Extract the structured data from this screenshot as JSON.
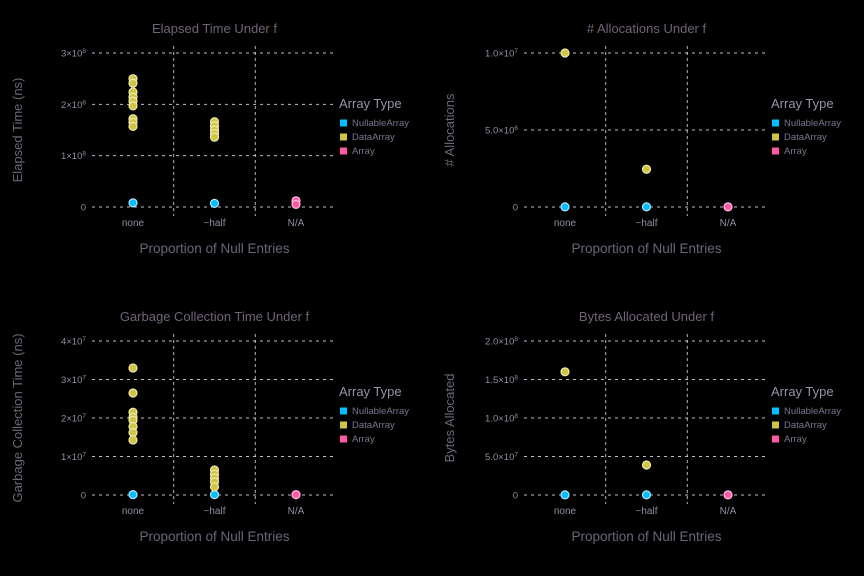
{
  "app": {
    "background_color": "#000000"
  },
  "colors": {
    "title": "#6e6478",
    "axis_label": "#6e6478",
    "tick_label": "#948ca0",
    "legend_title": "#9a90a8",
    "legend_label": "#7e7590",
    "gridline": "#d2d0e4"
  },
  "legend": {
    "title": "Array Type",
    "items": [
      {
        "label": "NullableArray",
        "color": "#00BFFF",
        "stroke": "#b0e5ff"
      },
      {
        "label": "DataArray",
        "color": "#D0C643",
        "stroke": "#efe9b0"
      },
      {
        "label": "Array",
        "color": "#FF59A6",
        "stroke": "#ffc0dc"
      }
    ]
  },
  "chart_data": [
    {
      "id": "elapsed-time",
      "type": "scatter",
      "title": "Elapsed Time Under f",
      "xlabel": "Proportion of Null Entries",
      "ylabel": "Elapsed Time (ns)",
      "categories": [
        "none",
        "~half",
        "N/A"
      ],
      "ylim": [
        0,
        300000000
      ],
      "grid": true,
      "legend_position": "right",
      "y_ticks": [
        {
          "value": 0,
          "mantissa": "0",
          "exp": ""
        },
        {
          "value": 100000000,
          "mantissa": "1×10",
          "exp": "8"
        },
        {
          "value": 200000000,
          "mantissa": "2×10",
          "exp": "8"
        },
        {
          "value": 300000000,
          "mantissa": "3×10",
          "exp": "8"
        }
      ],
      "series": [
        {
          "name": "NullableArray",
          "points": [
            [
              8000000
            ],
            [
              7000000
            ],
            []
          ]
        },
        {
          "name": "DataArray",
          "points": [
            [
              250000000,
              241000000,
              224000000,
              214000000,
              206000000,
              197000000,
              172000000,
              165000000,
              157000000
            ],
            [
              166000000,
              158000000,
              150000000,
              143000000,
              136000000
            ],
            []
          ]
        },
        {
          "name": "Array",
          "points": [
            [],
            [],
            [
              12000000,
              5000000
            ]
          ]
        }
      ]
    },
    {
      "id": "allocations",
      "type": "scatter",
      "title": "# Allocations Under f",
      "xlabel": "Proportion of Null Entries",
      "ylabel": "# Allocations",
      "categories": [
        "none",
        "~half",
        "N/A"
      ],
      "ylim": [
        0,
        10000000
      ],
      "grid": true,
      "legend_position": "right",
      "y_ticks": [
        {
          "value": 0,
          "mantissa": "0",
          "exp": ""
        },
        {
          "value": 5000000,
          "mantissa": "5.0×10",
          "exp": "6"
        },
        {
          "value": 10000000,
          "mantissa": "1.0×10",
          "exp": "7"
        }
      ],
      "series": [
        {
          "name": "NullableArray",
          "points": [
            [
              10000
            ],
            [
              10000
            ],
            []
          ]
        },
        {
          "name": "DataArray",
          "points": [
            [
              10000000
            ],
            [
              2450000
            ],
            []
          ]
        },
        {
          "name": "Array",
          "points": [
            [],
            [],
            [
              10000
            ]
          ]
        }
      ]
    },
    {
      "id": "gc-time",
      "type": "scatter",
      "title": "Garbage Collection Time Under f",
      "xlabel": "Proportion of Null Entries",
      "ylabel": "Garbage Collection Time (ns)",
      "categories": [
        "none",
        "~half",
        "N/A"
      ],
      "ylim": [
        0,
        40000000
      ],
      "grid": true,
      "legend_position": "right",
      "y_ticks": [
        {
          "value": 0,
          "mantissa": "0",
          "exp": ""
        },
        {
          "value": 10000000,
          "mantissa": "1×10",
          "exp": "7"
        },
        {
          "value": 20000000,
          "mantissa": "2×10",
          "exp": "7"
        },
        {
          "value": 30000000,
          "mantissa": "3×10",
          "exp": "7"
        },
        {
          "value": 40000000,
          "mantissa": "4×10",
          "exp": "7"
        }
      ],
      "series": [
        {
          "name": "NullableArray",
          "points": [
            [
              100000
            ],
            [
              100000
            ],
            []
          ]
        },
        {
          "name": "DataArray",
          "points": [
            [
              33000000,
              26500000,
              21500000,
              20200000,
              19400000,
              17800000,
              16200000,
              14300000
            ],
            [
              6500000,
              5400000,
              4400000,
              3400000,
              2100000
            ],
            []
          ]
        },
        {
          "name": "Array",
          "points": [
            [],
            [],
            [
              100000
            ]
          ]
        }
      ]
    },
    {
      "id": "bytes-allocated",
      "type": "scatter",
      "title": "Bytes Allocated Under f",
      "xlabel": "Proportion of Null Entries",
      "ylabel": "Bytes Allocated",
      "categories": [
        "none",
        "~half",
        "N/A"
      ],
      "ylim": [
        0,
        200000000
      ],
      "grid": true,
      "legend_position": "right",
      "y_ticks": [
        {
          "value": 0,
          "mantissa": "0",
          "exp": ""
        },
        {
          "value": 50000000,
          "mantissa": "5.0×10",
          "exp": "7"
        },
        {
          "value": 100000000,
          "mantissa": "1.0×10",
          "exp": "8"
        },
        {
          "value": 150000000,
          "mantissa": "1.5×10",
          "exp": "8"
        },
        {
          "value": 200000000,
          "mantissa": "2.0×10",
          "exp": "8"
        }
      ],
      "series": [
        {
          "name": "NullableArray",
          "points": [
            [
              200000
            ],
            [
              200000
            ],
            []
          ]
        },
        {
          "name": "DataArray",
          "points": [
            [
              160000000
            ],
            [
              39000000
            ],
            []
          ]
        },
        {
          "name": "Array",
          "points": [
            [],
            [],
            [
              200000
            ]
          ]
        }
      ]
    }
  ]
}
